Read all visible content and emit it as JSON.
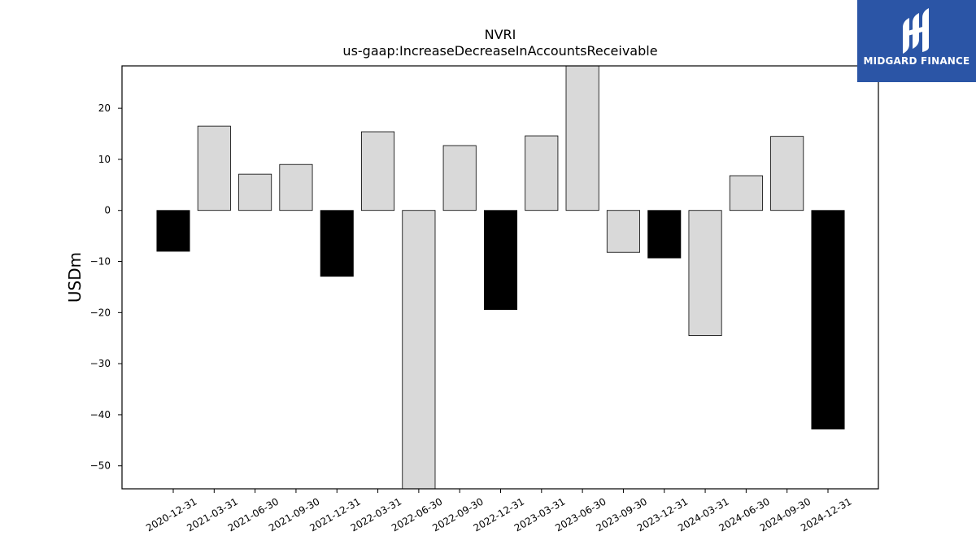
{
  "brand": {
    "name": "MIDGARD FINANCE",
    "bg_color": "#2b55a6",
    "icon": "midgard-logo-icon"
  },
  "chart_data": {
    "type": "bar",
    "title": "NVRI",
    "subtitle": "us-gaap:IncreaseDecreaseInAccountsReceivable",
    "xlabel": "",
    "ylabel": "USDm",
    "ylim": [
      -54.5,
      28.3
    ],
    "yticks": [
      20,
      10,
      0,
      -10,
      -20,
      -30,
      -40,
      -50
    ],
    "ytick_labels": [
      "20",
      "10",
      "0",
      "−10",
      "−20",
      "−30",
      "−40",
      "−50"
    ],
    "grid": false,
    "categories": [
      "2020-12-31",
      "2021-03-31",
      "2021-06-30",
      "2021-09-30",
      "2021-12-31",
      "2022-03-31",
      "2022-06-30",
      "2022-09-30",
      "2022-12-31",
      "2023-03-31",
      "2023-06-30",
      "2023-09-30",
      "2023-12-31",
      "2024-03-31",
      "2024-06-30",
      "2024-09-30",
      "2024-12-31"
    ],
    "values": [
      -8.0,
      16.5,
      7.1,
      9.0,
      -12.9,
      15.4,
      -54.5,
      12.7,
      -19.4,
      14.6,
      28.3,
      -8.2,
      -9.3,
      -24.5,
      6.8,
      14.5,
      -42.8
    ],
    "bar_colors": [
      "#000000",
      "#d9d9d9",
      "#d9d9d9",
      "#d9d9d9",
      "#000000",
      "#d9d9d9",
      "#d9d9d9",
      "#d9d9d9",
      "#000000",
      "#d9d9d9",
      "#d9d9d9",
      "#d9d9d9",
      "#000000",
      "#d9d9d9",
      "#d9d9d9",
      "#d9d9d9",
      "#000000"
    ]
  }
}
